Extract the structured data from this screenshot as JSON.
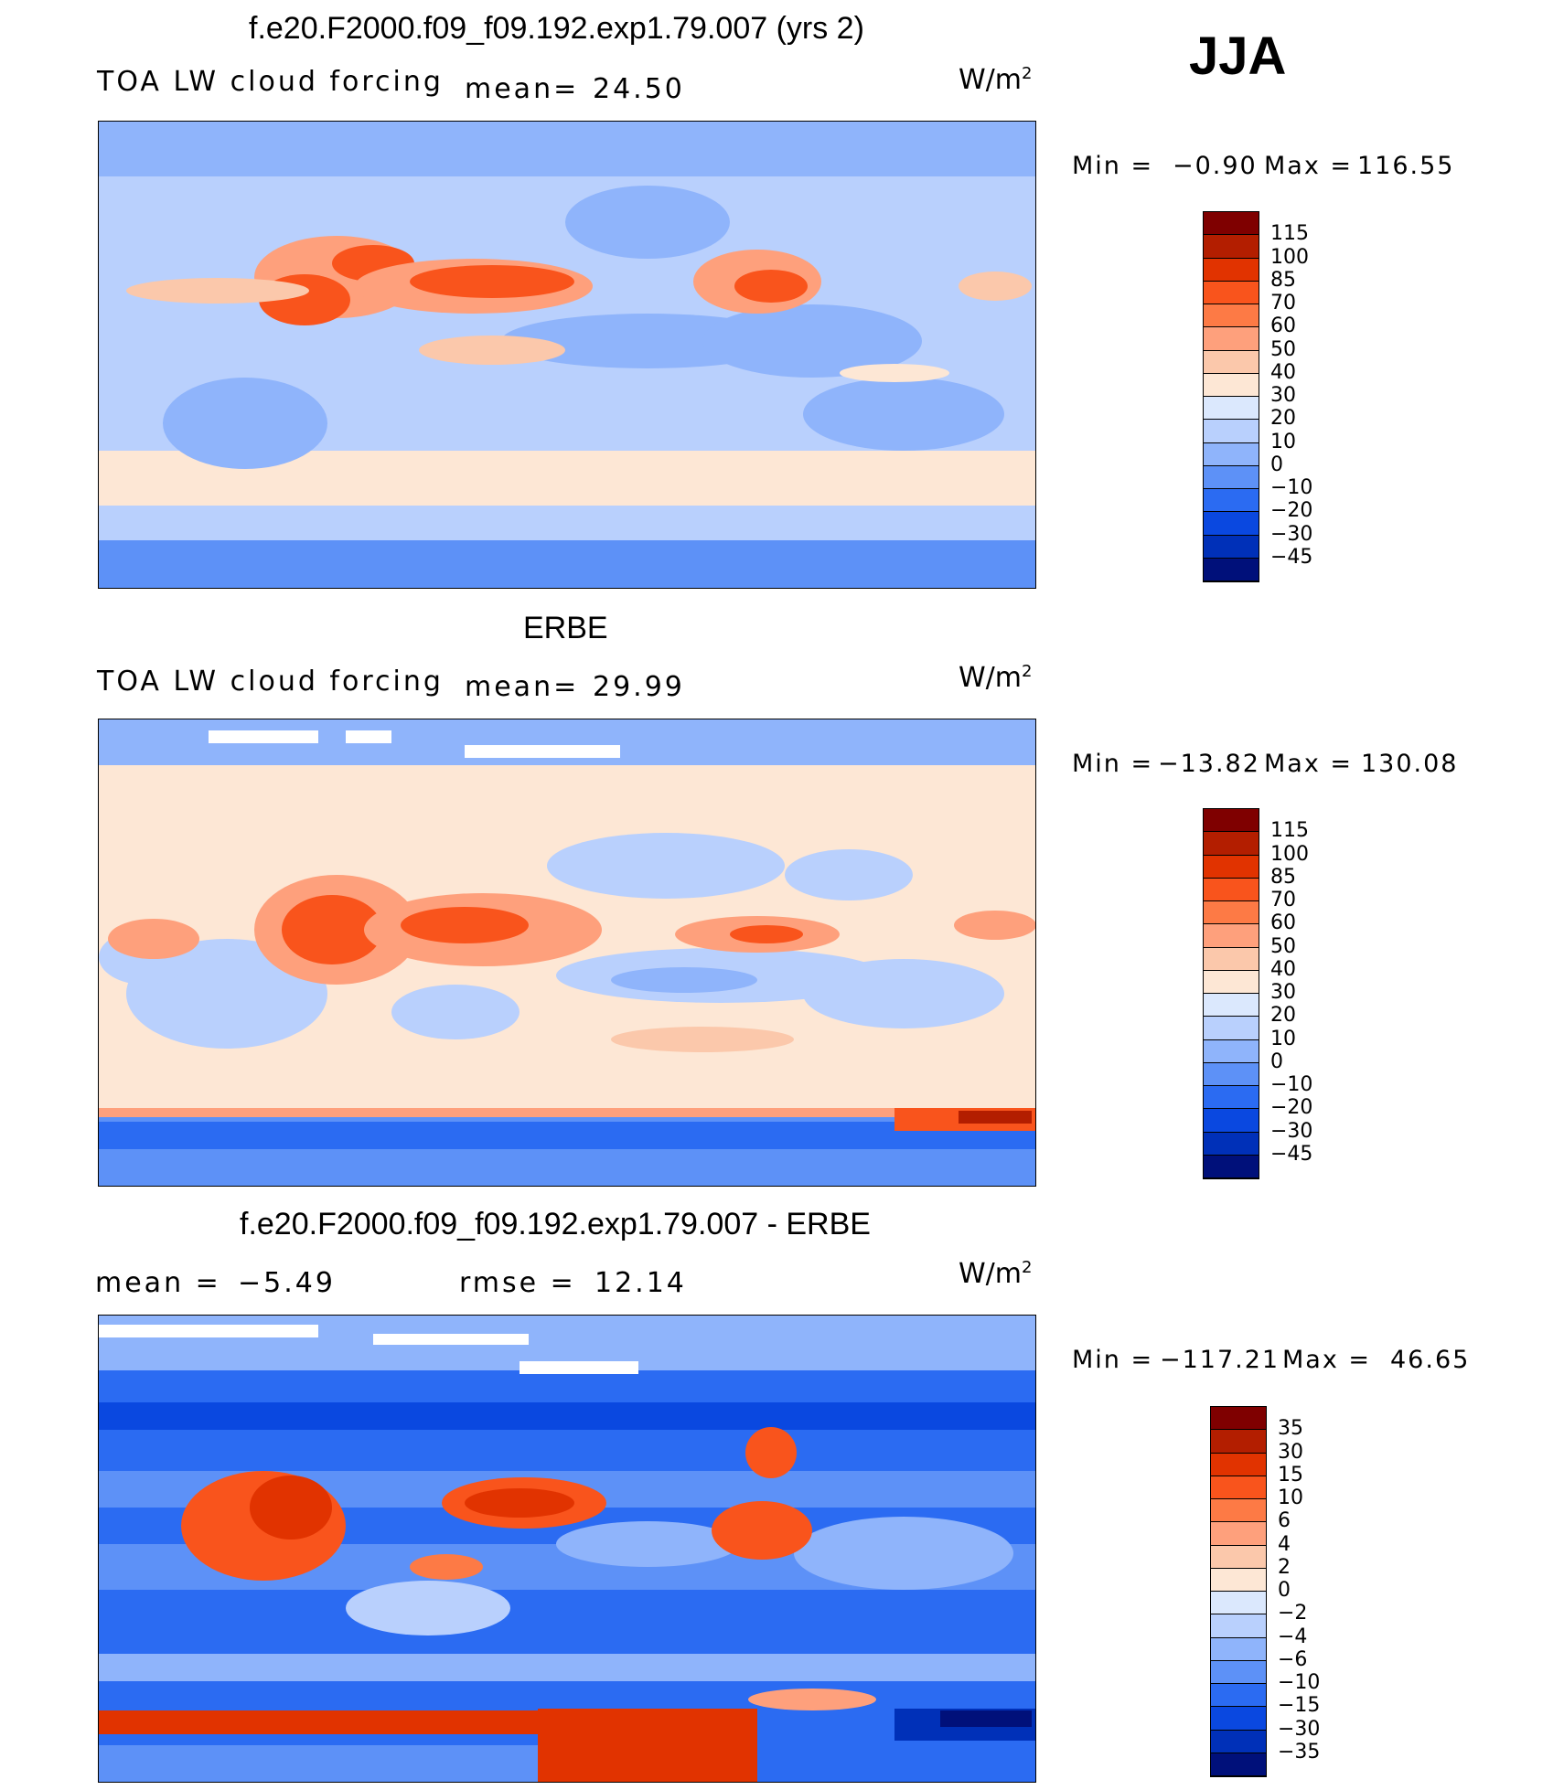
{
  "season": "JJA",
  "panels": [
    {
      "id": "model",
      "title": "f.e20.F2000.f09_f09.192.exp1.79.007 (yrs 2)",
      "left_label": "TOA LW cloud forcing",
      "mid_label": "mean=",
      "mid_value": "24.50",
      "units_base": "W/m",
      "units_exp": "2",
      "min_label": "Min =",
      "min_value": "−0.90",
      "max_label": "Max =",
      "max_value": "116.55",
      "colorbar_labels": [
        "115",
        "100",
        "85",
        "70",
        "60",
        "50",
        "40",
        "30",
        "20",
        "10",
        "0",
        "−10",
        "−20",
        "−30",
        "−45"
      ],
      "colors": [
        "#7f0000",
        "#b31e00",
        "#e13300",
        "#f9541c",
        "#fd7a45",
        "#fea07c",
        "#fbc8ab",
        "#fde7d5",
        "#dbe8fd",
        "#b9d0fd",
        "#8fb4fb",
        "#5d91f7",
        "#2b6bf2",
        "#0a48e0",
        "#0030b8",
        "#00107a"
      ]
    },
    {
      "id": "obs",
      "title": "ERBE",
      "left_label": "TOA LW cloud forcing",
      "mid_label": "mean=",
      "mid_value": "29.99",
      "units_base": "W/m",
      "units_exp": "2",
      "min_label": "Min =",
      "min_value": "−13.82",
      "max_label": "Max =",
      "max_value": "130.08",
      "colorbar_labels": [
        "115",
        "100",
        "85",
        "70",
        "60",
        "50",
        "40",
        "30",
        "20",
        "10",
        "0",
        "−10",
        "−20",
        "−30",
        "−45"
      ],
      "colors": [
        "#7f0000",
        "#b31e00",
        "#e13300",
        "#f9541c",
        "#fd7a45",
        "#fea07c",
        "#fbc8ab",
        "#fde7d5",
        "#dbe8fd",
        "#b9d0fd",
        "#8fb4fb",
        "#5d91f7",
        "#2b6bf2",
        "#0a48e0",
        "#0030b8",
        "#00107a"
      ]
    },
    {
      "id": "diff",
      "title": "f.e20.F2000.f09_f09.192.exp1.79.007 - ERBE",
      "left_label": "mean =",
      "left_value": "−5.49",
      "mid_label": "rmse =",
      "mid_value": "12.14",
      "units_base": "W/m",
      "units_exp": "2",
      "min_label": "Min =",
      "min_value": "−117.21",
      "max_label": "Max =",
      "max_value": "46.65",
      "colorbar_labels": [
        "35",
        "30",
        "15",
        "10",
        "6",
        "4",
        "2",
        "0",
        "−2",
        "−4",
        "−6",
        "−10",
        "−15",
        "−30",
        "−35"
      ],
      "colors": [
        "#7f0000",
        "#b31e00",
        "#e13300",
        "#f9541c",
        "#fd7a45",
        "#fea07c",
        "#fbc8ab",
        "#fde7d5",
        "#dbe8fd",
        "#b9d0fd",
        "#8fb4fb",
        "#5d91f7",
        "#2b6bf2",
        "#0a48e0",
        "#0030b8",
        "#00107a"
      ]
    }
  ],
  "chart_data": [
    {
      "type": "heatmap",
      "title": "f.e20.F2000.f09_f09.192.exp1.79.007 (yrs 2)",
      "variable": "TOA LW cloud forcing",
      "units": "W/m2",
      "mean": 24.5,
      "min": -0.9,
      "max": 116.55,
      "contour_levels": [
        -45,
        -30,
        -20,
        -10,
        0,
        10,
        20,
        30,
        40,
        50,
        60,
        70,
        85,
        100,
        115
      ]
    },
    {
      "type": "heatmap",
      "title": "ERBE",
      "variable": "TOA LW cloud forcing",
      "units": "W/m2",
      "mean": 29.99,
      "min": -13.82,
      "max": 130.08,
      "contour_levels": [
        -45,
        -30,
        -20,
        -10,
        0,
        10,
        20,
        30,
        40,
        50,
        60,
        70,
        85,
        100,
        115
      ]
    },
    {
      "type": "heatmap",
      "title": "f.e20.F2000.f09_f09.192.exp1.79.007 - ERBE",
      "variable": "TOA LW cloud forcing difference",
      "units": "W/m2",
      "mean": -5.49,
      "rmse": 12.14,
      "min": -117.21,
      "max": 46.65,
      "contour_levels": [
        -35,
        -30,
        -15,
        -10,
        -6,
        -4,
        -2,
        0,
        2,
        4,
        6,
        10,
        15,
        30,
        35
      ]
    }
  ]
}
